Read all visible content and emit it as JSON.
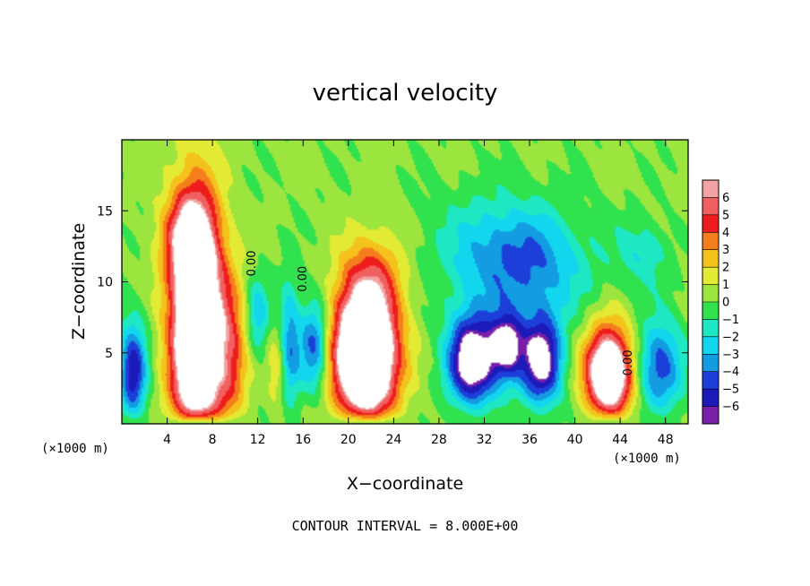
{
  "chart_data": {
    "type": "heatmap",
    "title": "vertical velocity",
    "xlabel": "X−coordinate",
    "ylabel": "Z−coordinate",
    "x_unit_left": "(×1000 m)",
    "x_unit_right": "(×1000 m)",
    "footer": "CONTOUR INTERVAL = 8.000E+00",
    "xlim": [
      0,
      50
    ],
    "ylim": [
      0,
      20
    ],
    "x_ticks": [
      4,
      8,
      12,
      16,
      20,
      24,
      28,
      32,
      36,
      40,
      44,
      48
    ],
    "x_tick_labels": [
      "4",
      "8",
      "12",
      "16",
      "20",
      "24",
      "28",
      "32",
      "36",
      "40",
      "44",
      "48"
    ],
    "y_ticks": [
      5,
      10,
      15
    ],
    "y_tick_labels": [
      "5",
      "10",
      "15"
    ],
    "colorbar": {
      "levels": [
        6,
        5,
        4,
        3,
        2,
        1,
        0,
        -1,
        -2,
        -3,
        -4,
        -5,
        -6
      ],
      "labels": [
        "6",
        "5",
        "4",
        "3",
        "2",
        "1",
        "0",
        "−1",
        "−2",
        "−3",
        "−4",
        "−5",
        "−6"
      ],
      "colors": [
        "#f3a3a3",
        "#f06060",
        "#ee1c1c",
        "#f57e1c",
        "#f5c21c",
        "#e2ea34",
        "#9ce43e",
        "#2fe24e",
        "#1ee8c4",
        "#12d6ee",
        "#139ce2",
        "#1d3fd9",
        "#1c1ab9",
        "#7b1fa8"
      ],
      "over_color": "#ffffff"
    },
    "contour_labels": [
      {
        "text": "0.00",
        "x": 11.8,
        "y": 11.3,
        "rotate": -90
      },
      {
        "text": "0.00",
        "x": 16.3,
        "y": 10.2,
        "rotate": -90
      },
      {
        "text": "0.00",
        "x": 45.0,
        "y": 4.3,
        "rotate": -90
      }
    ],
    "field_features": [
      {
        "kind": "updraft",
        "x": 6.5,
        "y": 6.5,
        "w": 2.4,
        "h": 10.0,
        "amp": 12
      },
      {
        "kind": "updraft",
        "x": 6.0,
        "y": 13.0,
        "w": 2.6,
        "h": 3.5,
        "amp": 4
      },
      {
        "kind": "updraft",
        "x": 9.5,
        "y": 5.0,
        "w": 1.8,
        "h": 6.0,
        "amp": 4
      },
      {
        "kind": "updraft",
        "x": 21.5,
        "y": 5.0,
        "w": 3.0,
        "h": 5.5,
        "amp": 14
      },
      {
        "kind": "updraft",
        "x": 22.5,
        "y": 11.0,
        "w": 3.0,
        "h": 3.0,
        "amp": 1.8
      },
      {
        "kind": "updraft",
        "x": 43.0,
        "y": 3.5,
        "w": 2.2,
        "h": 3.5,
        "amp": 11
      },
      {
        "kind": "updraft",
        "x": 13.8,
        "y": 4.0,
        "w": 1.0,
        "h": 3.5,
        "amp": 2
      },
      {
        "kind": "downdraft",
        "x": 1.0,
        "y": 3.5,
        "w": 1.3,
        "h": 4.0,
        "amp": 6
      },
      {
        "kind": "downdraft",
        "x": 12.0,
        "y": 7.5,
        "w": 1.1,
        "h": 3.0,
        "amp": 3
      },
      {
        "kind": "downdraft",
        "x": 14.8,
        "y": 5.5,
        "w": 1.0,
        "h": 5.0,
        "amp": 4
      },
      {
        "kind": "downdraft",
        "x": 17.0,
        "y": 5.5,
        "w": 1.4,
        "h": 3.5,
        "amp": 5
      },
      {
        "kind": "downdraft",
        "x": 31.0,
        "y": 4.5,
        "w": 2.4,
        "h": 3.5,
        "amp": 9
      },
      {
        "kind": "downdraft",
        "x": 34.0,
        "y": 5.5,
        "w": 1.5,
        "h": 2.5,
        "amp": 7
      },
      {
        "kind": "downdraft",
        "x": 37.0,
        "y": 4.5,
        "w": 2.0,
        "h": 3.5,
        "amp": 8
      },
      {
        "kind": "downdraft",
        "x": 35.5,
        "y": 11.0,
        "w": 6.0,
        "h": 4.0,
        "amp": 3.5
      },
      {
        "kind": "downdraft",
        "x": 33.0,
        "y": 13.0,
        "w": 7.0,
        "h": 4.0,
        "amp": 1.6
      },
      {
        "kind": "downdraft",
        "x": 47.5,
        "y": 4.0,
        "w": 2.2,
        "h": 3.5,
        "amp": 5
      },
      {
        "kind": "downdraft",
        "x": 46.0,
        "y": 12.0,
        "w": 2.5,
        "h": 2.5,
        "amp": 2
      }
    ]
  }
}
